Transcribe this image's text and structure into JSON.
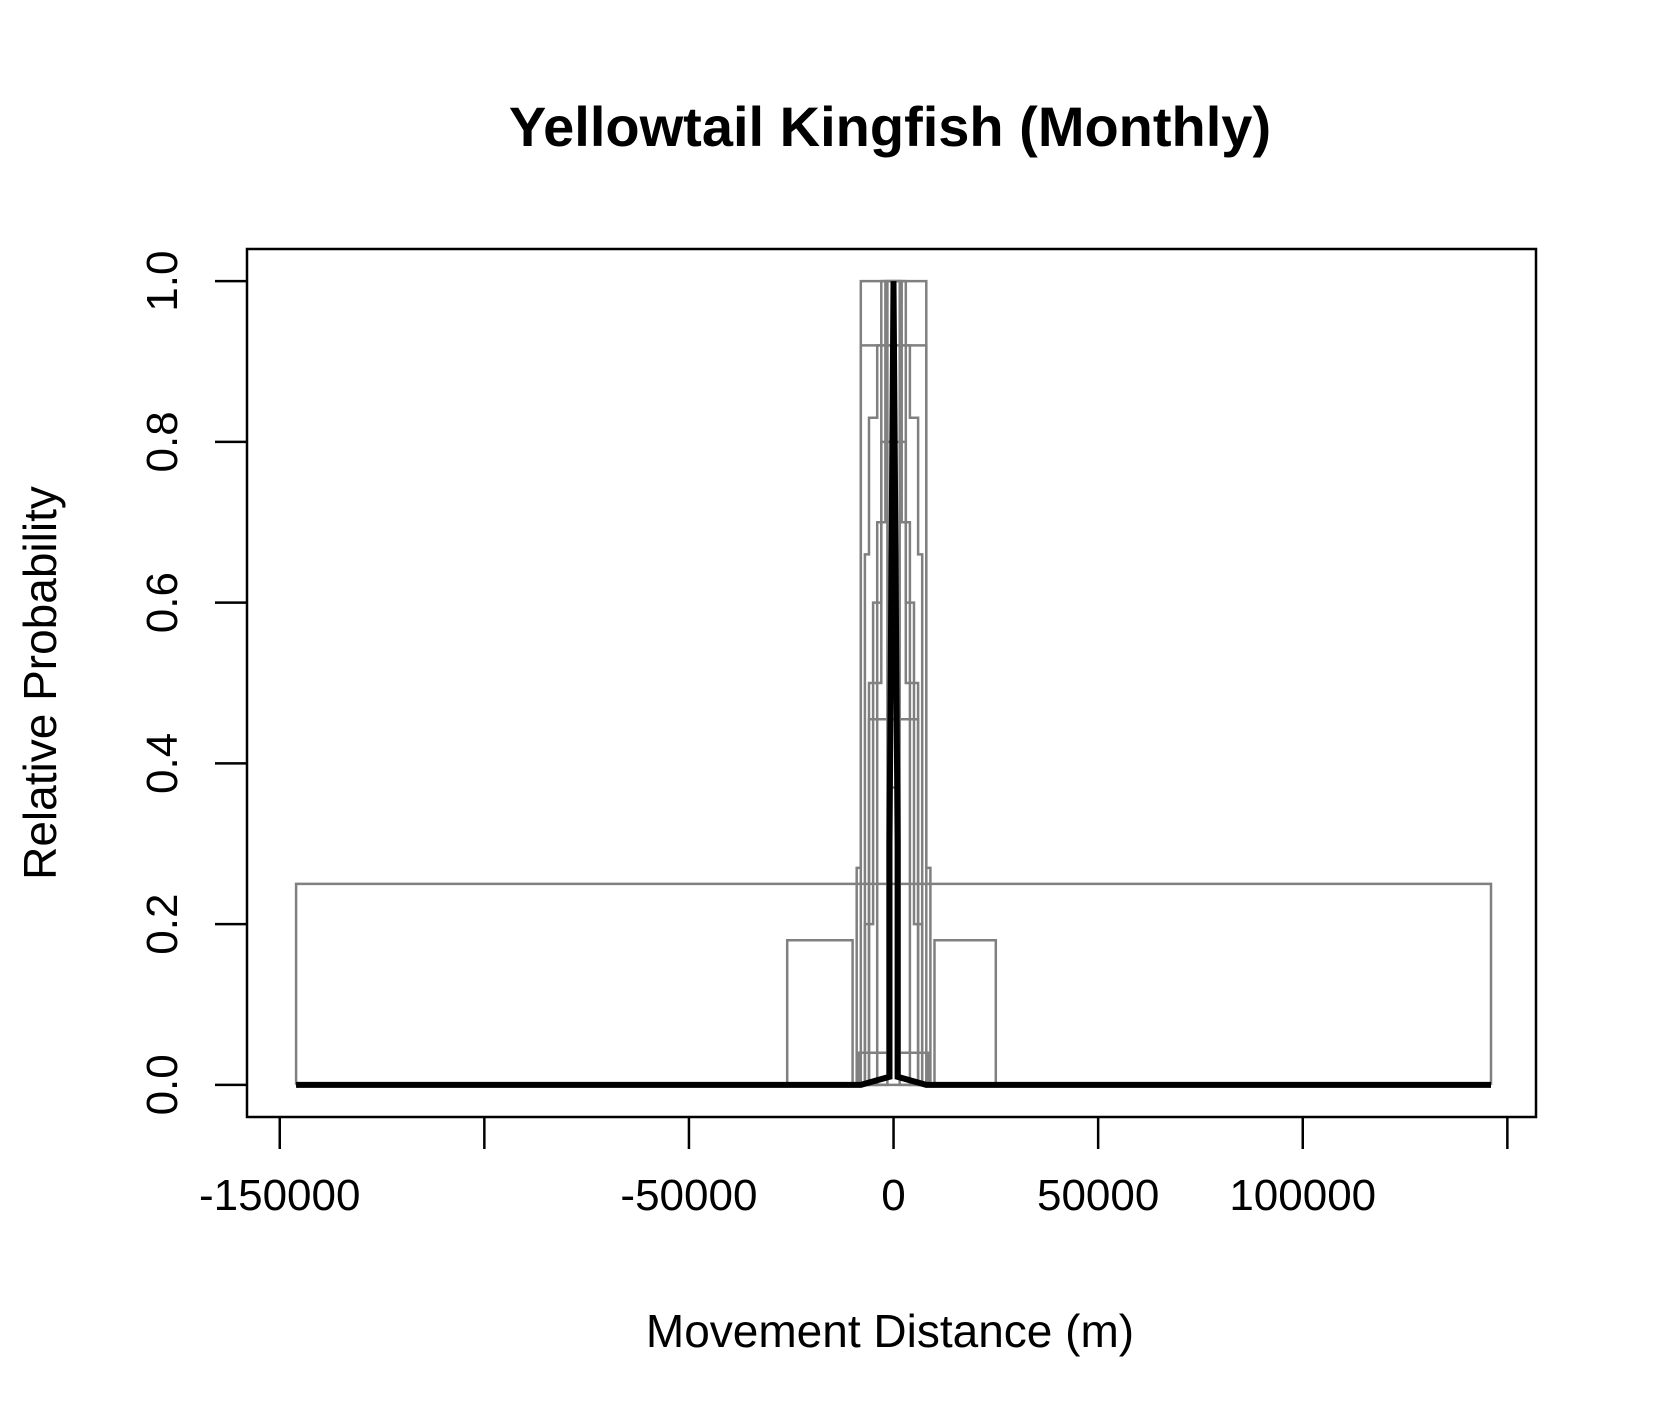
{
  "chart_data": {
    "type": "line",
    "title": "Yellowtail Kingfish (Monthly)",
    "xlabel": "Movement Distance (m)",
    "ylabel": "Relative Probability",
    "xlim": [
      -158000,
      157000
    ],
    "ylim": [
      -0.04,
      1.04
    ],
    "x_ticks": [
      -150000,
      -100000,
      -50000,
      0,
      50000,
      100000,
      150000
    ],
    "x_tick_labels": [
      "-150000",
      "",
      "-50000",
      "0",
      "50000",
      "100000",
      ""
    ],
    "y_ticks": [
      0.0,
      0.2,
      0.4,
      0.6,
      0.8,
      1.0
    ],
    "y_tick_labels": [
      "0.0",
      "0.2",
      "0.4",
      "0.6",
      "0.8",
      "1.0"
    ],
    "grid": false,
    "legend": "none",
    "colors": {
      "grey_series": "#808080",
      "mean_series": "#000000"
    },
    "series": [
      {
        "style": "grey",
        "x": [
          -146000,
          -146000,
          -146000,
          146000,
          146000,
          146000
        ],
        "y": [
          0.12,
          0.0,
          0.25,
          0.25,
          0.0,
          0.12
        ]
      },
      {
        "style": "grey",
        "x": [
          -146000,
          -26000,
          -26000,
          -26000,
          -10000,
          -10000,
          10000,
          10000,
          25000,
          25000,
          25000,
          146000
        ],
        "y": [
          0.0,
          0.0,
          0.12,
          0.18,
          0.18,
          0.0,
          0.0,
          0.18,
          0.18,
          0.12,
          0.0,
          0.0
        ]
      },
      {
        "style": "grey",
        "x": [
          -146000,
          -9000,
          -9000,
          -8000,
          -8000,
          8000,
          8000,
          9000,
          9000,
          146000
        ],
        "y": [
          0.0,
          0.0,
          0.27,
          0.27,
          1.0,
          1.0,
          0.27,
          0.27,
          0.0,
          0.0
        ]
      },
      {
        "style": "grey",
        "x": [
          -146000,
          -8000,
          -8000,
          8000,
          8000,
          146000
        ],
        "y": [
          0.0,
          0.0,
          0.92,
          0.92,
          0.0,
          0.0
        ]
      },
      {
        "style": "grey",
        "x": [
          -146000,
          -6000,
          -6000,
          6000,
          6000,
          146000
        ],
        "y": [
          0.0,
          0.0,
          0.455,
          0.455,
          0.0,
          0.0
        ]
      },
      {
        "style": "grey",
        "x": [
          -146000,
          -7000,
          -7000,
          -6000,
          -6000,
          -4000,
          -4000,
          4000,
          4000,
          6000,
          6000,
          7000,
          7000,
          146000
        ],
        "y": [
          0.0,
          0.0,
          0.66,
          0.66,
          0.83,
          0.83,
          0.92,
          0.92,
          0.83,
          0.83,
          0.66,
          0.66,
          0.0,
          0.0
        ]
      },
      {
        "style": "grey",
        "x": [
          -146000,
          -7000,
          -7000,
          -5000,
          -5000,
          -3000,
          -3000,
          3000,
          3000,
          5000,
          5000,
          7000,
          7000,
          146000
        ],
        "y": [
          0.0,
          0.0,
          0.2,
          0.2,
          0.6,
          0.6,
          0.8,
          0.8,
          0.6,
          0.6,
          0.2,
          0.2,
          0.0,
          0.0
        ]
      },
      {
        "style": "grey",
        "x": [
          -146000,
          -6000,
          -6000,
          -3000,
          -3000,
          3000,
          3000,
          6000,
          6000,
          146000
        ],
        "y": [
          0.0,
          0.0,
          0.5,
          0.5,
          1.0,
          1.0,
          0.5,
          0.5,
          0.0,
          0.0
        ]
      },
      {
        "style": "grey",
        "x": [
          -146000,
          -4000,
          -4000,
          -2000,
          -2000,
          2000,
          2000,
          4000,
          4000,
          146000
        ],
        "y": [
          0.0,
          0.0,
          0.7,
          0.7,
          1.0,
          1.0,
          0.7,
          0.7,
          0.0,
          0.0
        ]
      },
      {
        "style": "grey",
        "x": [
          -146000,
          -1500,
          -1500,
          1500,
          1500,
          146000
        ],
        "y": [
          0.0,
          0.0,
          1.0,
          1.0,
          0.0,
          0.0
        ]
      },
      {
        "style": "grey",
        "x": [
          -146000,
          -8500,
          -8500,
          -1000,
          -1000,
          1000,
          1000,
          8500,
          8500,
          146000
        ],
        "y": [
          0.0,
          0.0,
          0.04,
          0.04,
          0.37,
          0.37,
          0.04,
          0.04,
          0.0,
          0.0
        ]
      },
      {
        "style": "mean",
        "x": [
          -146000,
          -8000,
          -1000,
          -1000,
          0,
          1000,
          1000,
          8000,
          146000
        ],
        "y": [
          0.0,
          0.0,
          0.01,
          0.3,
          1.0,
          0.3,
          0.01,
          0.0,
          0.0
        ]
      }
    ]
  }
}
